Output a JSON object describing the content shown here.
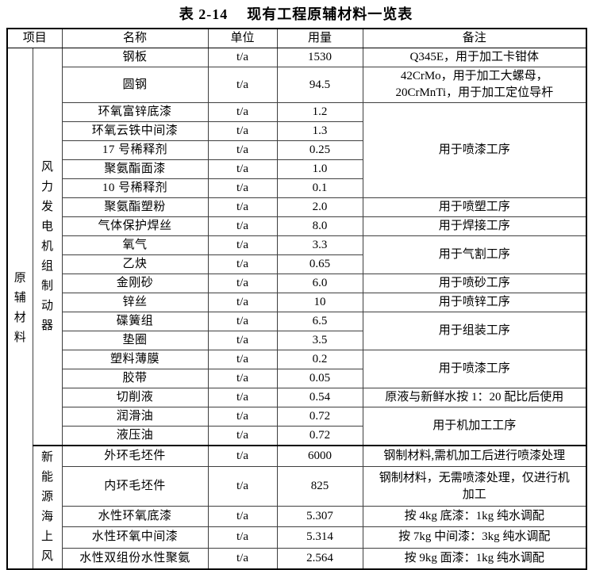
{
  "title": {
    "label": "表 2-14",
    "text": "现有工程原辅材料一览表"
  },
  "table": {
    "headers": {
      "item": "项目",
      "name": "名称",
      "unit": "单位",
      "amount": "用量",
      "remark": "备注"
    },
    "category": "原辅材料",
    "groups": [
      {
        "label": "风力发电机组制动器",
        "rows": [
          {
            "name": "钢板",
            "unit": "t/a",
            "amount": "1530",
            "remark": "Q345E，用于加工卡钳体",
            "remark_span": 1
          },
          {
            "name": "圆钢",
            "unit": "t/a",
            "amount": "94.5",
            "remark": "42CrMo，用于加工大螺母，\n20CrMnTi，用于加工定位导杆",
            "remark_span": 1
          },
          {
            "name": "环氧富锌底漆",
            "unit": "t/a",
            "amount": "1.2",
            "remark": "用于喷漆工序",
            "remark_span": 5
          },
          {
            "name": "环氧云铁中间漆",
            "unit": "t/a",
            "amount": "1.3"
          },
          {
            "name": "17 号稀释剂",
            "unit": "t/a",
            "amount": "0.25"
          },
          {
            "name": "聚氨酯面漆",
            "unit": "t/a",
            "amount": "1.0"
          },
          {
            "name": "10 号稀释剂",
            "unit": "t/a",
            "amount": "0.1"
          },
          {
            "name": "聚氨酯塑粉",
            "unit": "t/a",
            "amount": "2.0",
            "remark": "用于喷塑工序",
            "remark_span": 1
          },
          {
            "name": "气体保护焊丝",
            "unit": "t/a",
            "amount": "8.0",
            "remark": "用于焊接工序",
            "remark_span": 1
          },
          {
            "name": "氧气",
            "unit": "t/a",
            "amount": "3.3",
            "remark": "用于气割工序",
            "remark_span": 2
          },
          {
            "name": "乙炔",
            "unit": "t/a",
            "amount": "0.65"
          },
          {
            "name": "金刚砂",
            "unit": "t/a",
            "amount": "6.0",
            "remark": "用于喷砂工序",
            "remark_span": 1
          },
          {
            "name": "锌丝",
            "unit": "t/a",
            "amount": "10",
            "remark": "用于喷锌工序",
            "remark_span": 1
          },
          {
            "name": "碟簧组",
            "unit": "t/a",
            "amount": "6.5",
            "remark": "用于组装工序",
            "remark_span": 2
          },
          {
            "name": "垫圈",
            "unit": "t/a",
            "amount": "3.5"
          },
          {
            "name": "塑料薄膜",
            "unit": "t/a",
            "amount": "0.2",
            "remark": "用于喷漆工序",
            "remark_span": 2
          },
          {
            "name": "胶带",
            "unit": "t/a",
            "amount": "0.05"
          },
          {
            "name": "切削液",
            "unit": "t/a",
            "amount": "0.54",
            "remark": "原液与新鲜水按 1：20 配比后使用",
            "remark_span": 1
          },
          {
            "name": "润滑油",
            "unit": "t/a",
            "amount": "0.72",
            "remark": "用于机加工工序",
            "remark_span": 2
          },
          {
            "name": "液压油",
            "unit": "t/a",
            "amount": "0.72"
          }
        ]
      },
      {
        "label": "新能源海上风",
        "rows": [
          {
            "name": "外环毛坯件",
            "unit": "t/a",
            "amount": "6000",
            "remark": "钢制材料,需机加工后进行喷漆处理",
            "remark_span": 1
          },
          {
            "name": "内环毛坯件",
            "unit": "t/a",
            "amount": "825",
            "remark": "钢制材料，无需喷漆处理，仅进行机\n加工",
            "remark_span": 1
          },
          {
            "name": "水性环氧底漆",
            "unit": "t/a",
            "amount": "5.307",
            "remark": "按 4kg 底漆：1kg 纯水调配",
            "remark_span": 1
          },
          {
            "name": "水性环氧中间漆",
            "unit": "t/a",
            "amount": "5.314",
            "remark": "按 7kg 中间漆：3kg 纯水调配",
            "remark_span": 1
          },
          {
            "name": "水性双组份水性聚氨",
            "unit": "t/a",
            "amount": "2.564",
            "remark": "按 9kg 面漆：1kg 纯水调配",
            "remark_span": 1
          }
        ]
      }
    ]
  }
}
